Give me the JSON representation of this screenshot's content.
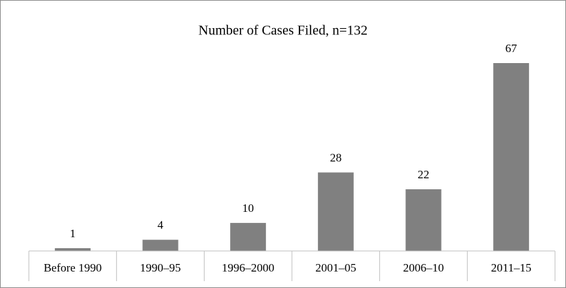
{
  "chart_data": {
    "type": "bar",
    "title": "Number of Cases Filed, n=132",
    "categories": [
      "Before 1990",
      "1990–95",
      "1996–2000",
      "2001–05",
      "2006–10",
      "2011–15"
    ],
    "values": [
      1,
      4,
      10,
      28,
      22,
      67
    ],
    "color": "#808080"
  }
}
